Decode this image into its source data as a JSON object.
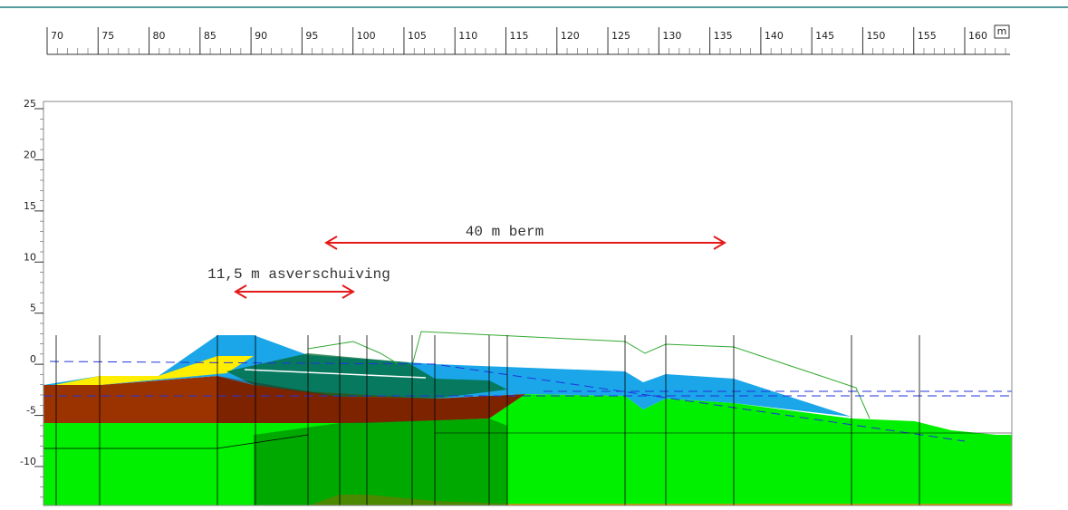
{
  "ruler": {
    "ticks": [
      70,
      75,
      80,
      85,
      90,
      95,
      100,
      105,
      110,
      115,
      120,
      125,
      130,
      135,
      140,
      145,
      150,
      155,
      160
    ],
    "unit": "m"
  },
  "axis": {
    "ticks": [
      25,
      20,
      15,
      10,
      5,
      0,
      -5,
      -10
    ]
  },
  "annotations": {
    "berm": "40 m berm",
    "shift": "11,5 m asverschuiving"
  }
}
